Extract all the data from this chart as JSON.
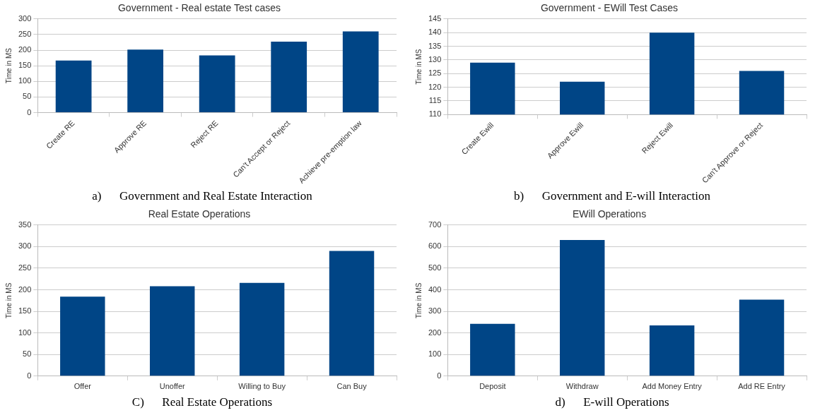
{
  "chart_data": [
    {
      "type": "bar",
      "title": "Government - Real estate Test cases",
      "ylabel": "Time in MS",
      "categories": [
        "Create RE",
        "Approve RE",
        "Reject RE",
        "Can't Accept or Reject",
        "Achieve pre-emption law"
      ],
      "values": [
        167,
        202,
        183,
        227,
        260
      ],
      "color": "#004586",
      "ylim": [
        0,
        300
      ],
      "yticks": [
        0,
        50,
        100,
        150,
        200,
        250,
        300
      ],
      "grid": "y",
      "annotations": [
        "a)      Government and Real Estate Interaction"
      ]
    },
    {
      "type": "bar",
      "title": "Government - EWill Test Cases",
      "ylabel": "Time in MS",
      "categories": [
        "Create Ewill",
        "Approve Ewill",
        "Reject Ewill",
        "Can't Approve or Reject"
      ],
      "values": [
        129,
        122,
        140,
        126
      ],
      "color": "#004586",
      "ylim": [
        110,
        145
      ],
      "yticks": [
        110,
        115,
        120,
        125,
        130,
        135,
        140,
        145
      ],
      "grid": "y",
      "annotations": [
        "b)      Government and E-will Interaction"
      ]
    },
    {
      "type": "bar",
      "title": "Real Estate Operations",
      "ylabel": "Time in MS",
      "categories": [
        "Offer",
        "Unoffer",
        "Willing to Buy",
        "Can Buy"
      ],
      "values": [
        184,
        208,
        216,
        290
      ],
      "color": "#004586",
      "ylim": [
        0,
        350
      ],
      "yticks": [
        0,
        50,
        100,
        150,
        200,
        250,
        300,
        350
      ],
      "grid": "y",
      "annotations": [
        "C)      Real Estate Operations"
      ]
    },
    {
      "type": "bar",
      "title": "EWill Operations",
      "ylabel": "Time in MS",
      "categories": [
        "Deposit",
        "Withdraw",
        "Add Money Entry",
        "Add RE Entry"
      ],
      "values": [
        242,
        631,
        235,
        354
      ],
      "color": "#004586",
      "ylim": [
        0,
        700
      ],
      "yticks": [
        0,
        100,
        200,
        300,
        400,
        500,
        600,
        700
      ],
      "grid": "y",
      "annotations": [
        "d)      E-will Operations"
      ]
    }
  ]
}
